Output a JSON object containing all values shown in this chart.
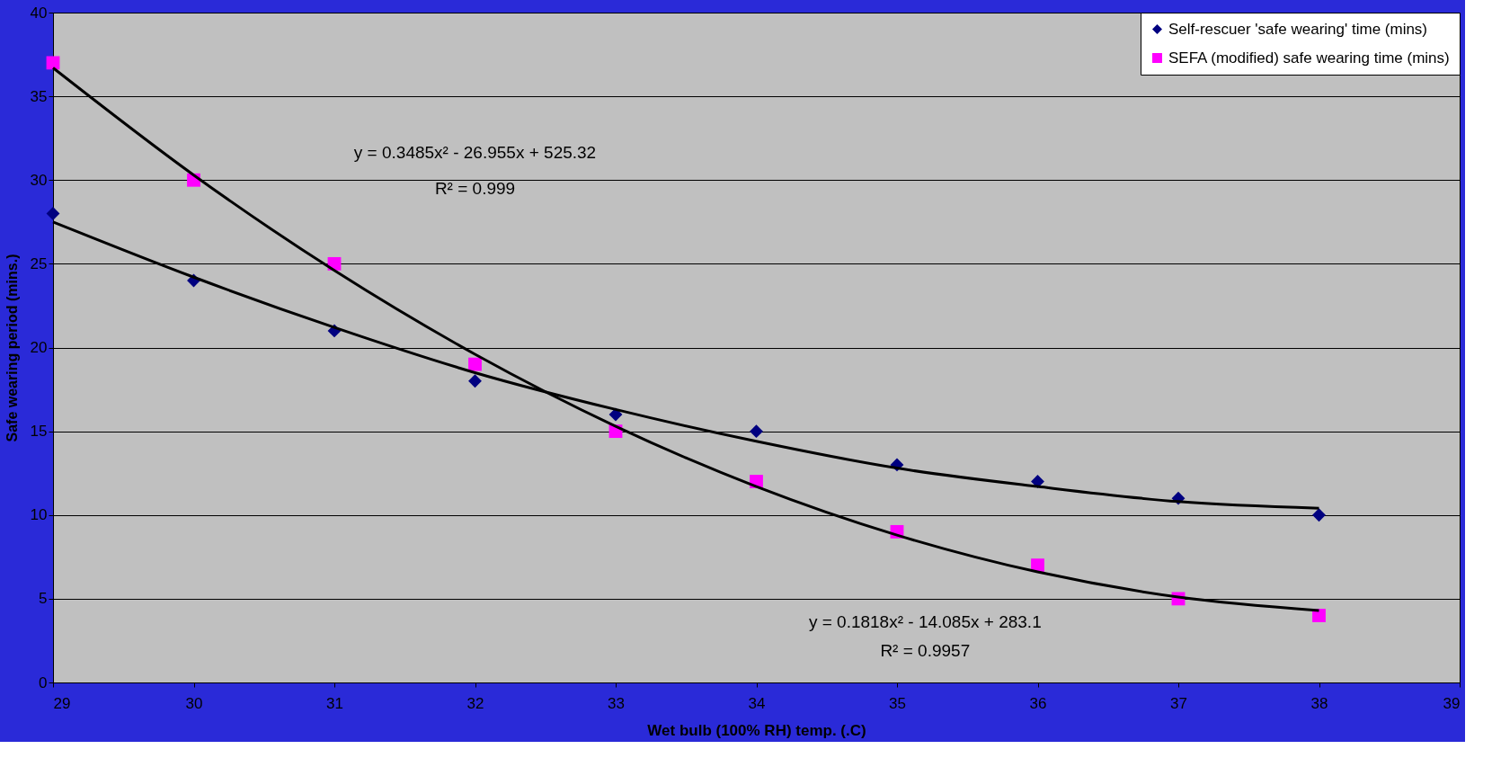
{
  "chart_data": {
    "type": "scatter",
    "xlabel": "Wet bulb (100% RH) temp. (.C)",
    "ylabel": "Safe wearing period (mins.)",
    "x": [
      29,
      30,
      31,
      32,
      33,
      34,
      35,
      36,
      37,
      38
    ],
    "series": [
      {
        "name": "Self-rescuer 'safe wearing' time (mins)",
        "color": "#000080",
        "marker": "diamond",
        "values": [
          28,
          24,
          21,
          18,
          16,
          15,
          13,
          12,
          11,
          10
        ]
      },
      {
        "name": "SEFA (modified) safe wearing time (mins)",
        "color": "#ff00ff",
        "marker": "square",
        "values": [
          37,
          30,
          25,
          19,
          15,
          12,
          9,
          7,
          5,
          4
        ]
      },
      {
        "type": "line",
        "color": "#000000",
        "x": [
          29,
          30,
          31,
          32,
          33,
          34,
          35,
          36,
          37,
          38
        ],
        "values": [
          27.5,
          24.2,
          21.2,
          18.5,
          16.3,
          14.4,
          12.8,
          11.7,
          10.8,
          10.4
        ]
      },
      {
        "type": "line",
        "color": "#000000",
        "x": [
          29,
          30,
          31,
          32,
          33,
          34,
          35,
          36,
          37,
          38
        ],
        "values": [
          36.7,
          30.3,
          24.6,
          19.6,
          15.3,
          11.7,
          8.8,
          6.6,
          5.1,
          4.3
        ]
      }
    ],
    "annotations": [
      "y = 0.3485x² - 26.955x + 525.32",
      "R² = 0.999",
      "y = 0.1818x² - 14.085x + 283.1",
      "R² = 0.9957"
    ],
    "xlim": [
      29,
      39
    ],
    "xticks": [
      29,
      30,
      31,
      32,
      33,
      34,
      35,
      36,
      37,
      38,
      39
    ],
    "ylim": [
      0,
      40
    ],
    "yticks": [
      0,
      5,
      10,
      15,
      20,
      25,
      30,
      35,
      40
    ],
    "grid": "y",
    "legend": "top right",
    "line_style": "solid"
  }
}
